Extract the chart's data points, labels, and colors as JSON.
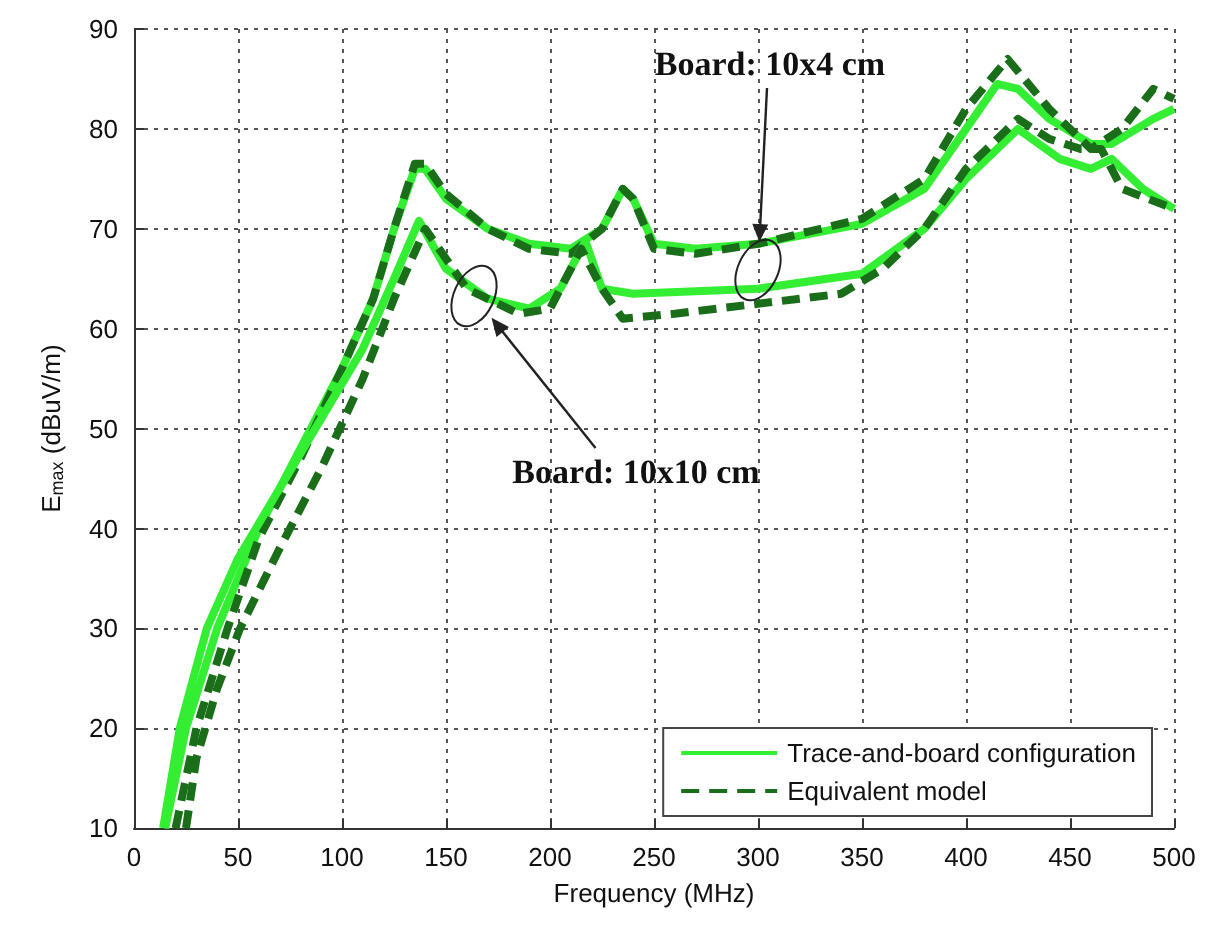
{
  "chart_data": {
    "type": "line",
    "xlabel": "Frequency (MHz)",
    "ylabel": "E$_{max}$ (dBuV/m)",
    "xlim": [
      0,
      500
    ],
    "ylim": [
      10,
      90
    ],
    "xticks": [
      0,
      50,
      100,
      150,
      200,
      250,
      300,
      350,
      400,
      450,
      500
    ],
    "yticks": [
      10,
      20,
      30,
      40,
      50,
      60,
      70,
      80,
      90
    ],
    "grid": true,
    "legend": "bottom right",
    "marker": "none",
    "series": [
      {
        "name": "Trace-and-board configuration",
        "color": "#33ee33",
        "line_style": "solid",
        "x": [
          15,
          25,
          40,
          60,
          80,
          100,
          115,
          125,
          135,
          140,
          150,
          170,
          190,
          210,
          225,
          235,
          240,
          250,
          270,
          300,
          350,
          380,
          400,
          415,
          425,
          440,
          460,
          470,
          490,
          500
        ],
        "values": [
          10,
          20,
          30,
          40,
          48,
          56,
          63,
          70,
          76,
          76,
          73,
          70,
          68.5,
          68,
          70,
          74,
          73,
          68.5,
          68,
          68.5,
          70.5,
          74,
          80,
          84.5,
          84,
          81,
          78.5,
          78.5,
          81,
          82
        ]
      },
      {
        "name": "Equivalent model",
        "color": "#1a6e1a",
        "line_style": "dashed",
        "x": [
          20,
          30,
          45,
          60,
          80,
          100,
          115,
          125,
          135,
          140,
          150,
          170,
          190,
          210,
          225,
          235,
          240,
          250,
          270,
          300,
          350,
          380,
          400,
          420,
          440,
          460,
          475,
          490,
          500
        ],
        "values": [
          10,
          20,
          30,
          39,
          47,
          56,
          63,
          70,
          76.5,
          76.5,
          73.5,
          70,
          68,
          67.5,
          70,
          74,
          73,
          68,
          67.5,
          68.5,
          71,
          75,
          82,
          87,
          82,
          78,
          80,
          84,
          83
        ]
      },
      {
        "color": "#33ee33",
        "line_style": "solid",
        "x": [
          14,
          22,
          35,
          50,
          70,
          90,
          110,
          125,
          137,
          150,
          170,
          190,
          205,
          217,
          225,
          240,
          300,
          350,
          380,
          400,
          425,
          445,
          460,
          470,
          485,
          500
        ],
        "values": [
          10,
          20,
          30,
          37,
          44,
          51,
          58,
          65,
          70.8,
          66,
          63,
          62,
          64,
          68.8,
          64,
          63.5,
          64,
          65.5,
          70,
          75,
          80,
          77,
          76,
          77,
          74,
          72
        ]
      },
      {
        "color": "#1a6e1a",
        "line_style": "dashed",
        "x": [
          25,
          30,
          40,
          51,
          70,
          90,
          110,
          125,
          140,
          160,
          185,
          200,
          215,
          225,
          235,
          260,
          300,
          340,
          360,
          380,
          400,
          425,
          440,
          455,
          465,
          475,
          500
        ],
        "values": [
          10,
          17,
          24,
          30,
          38,
          46,
          55,
          63,
          70,
          64,
          61.5,
          62,
          68,
          64,
          61,
          61.5,
          62.5,
          63.5,
          66,
          70,
          76,
          81,
          79,
          78,
          78,
          74,
          72
        ]
      }
    ],
    "annotations": [
      "Board: 10x4 cm",
      "Board: 10x10 cm"
    ]
  }
}
